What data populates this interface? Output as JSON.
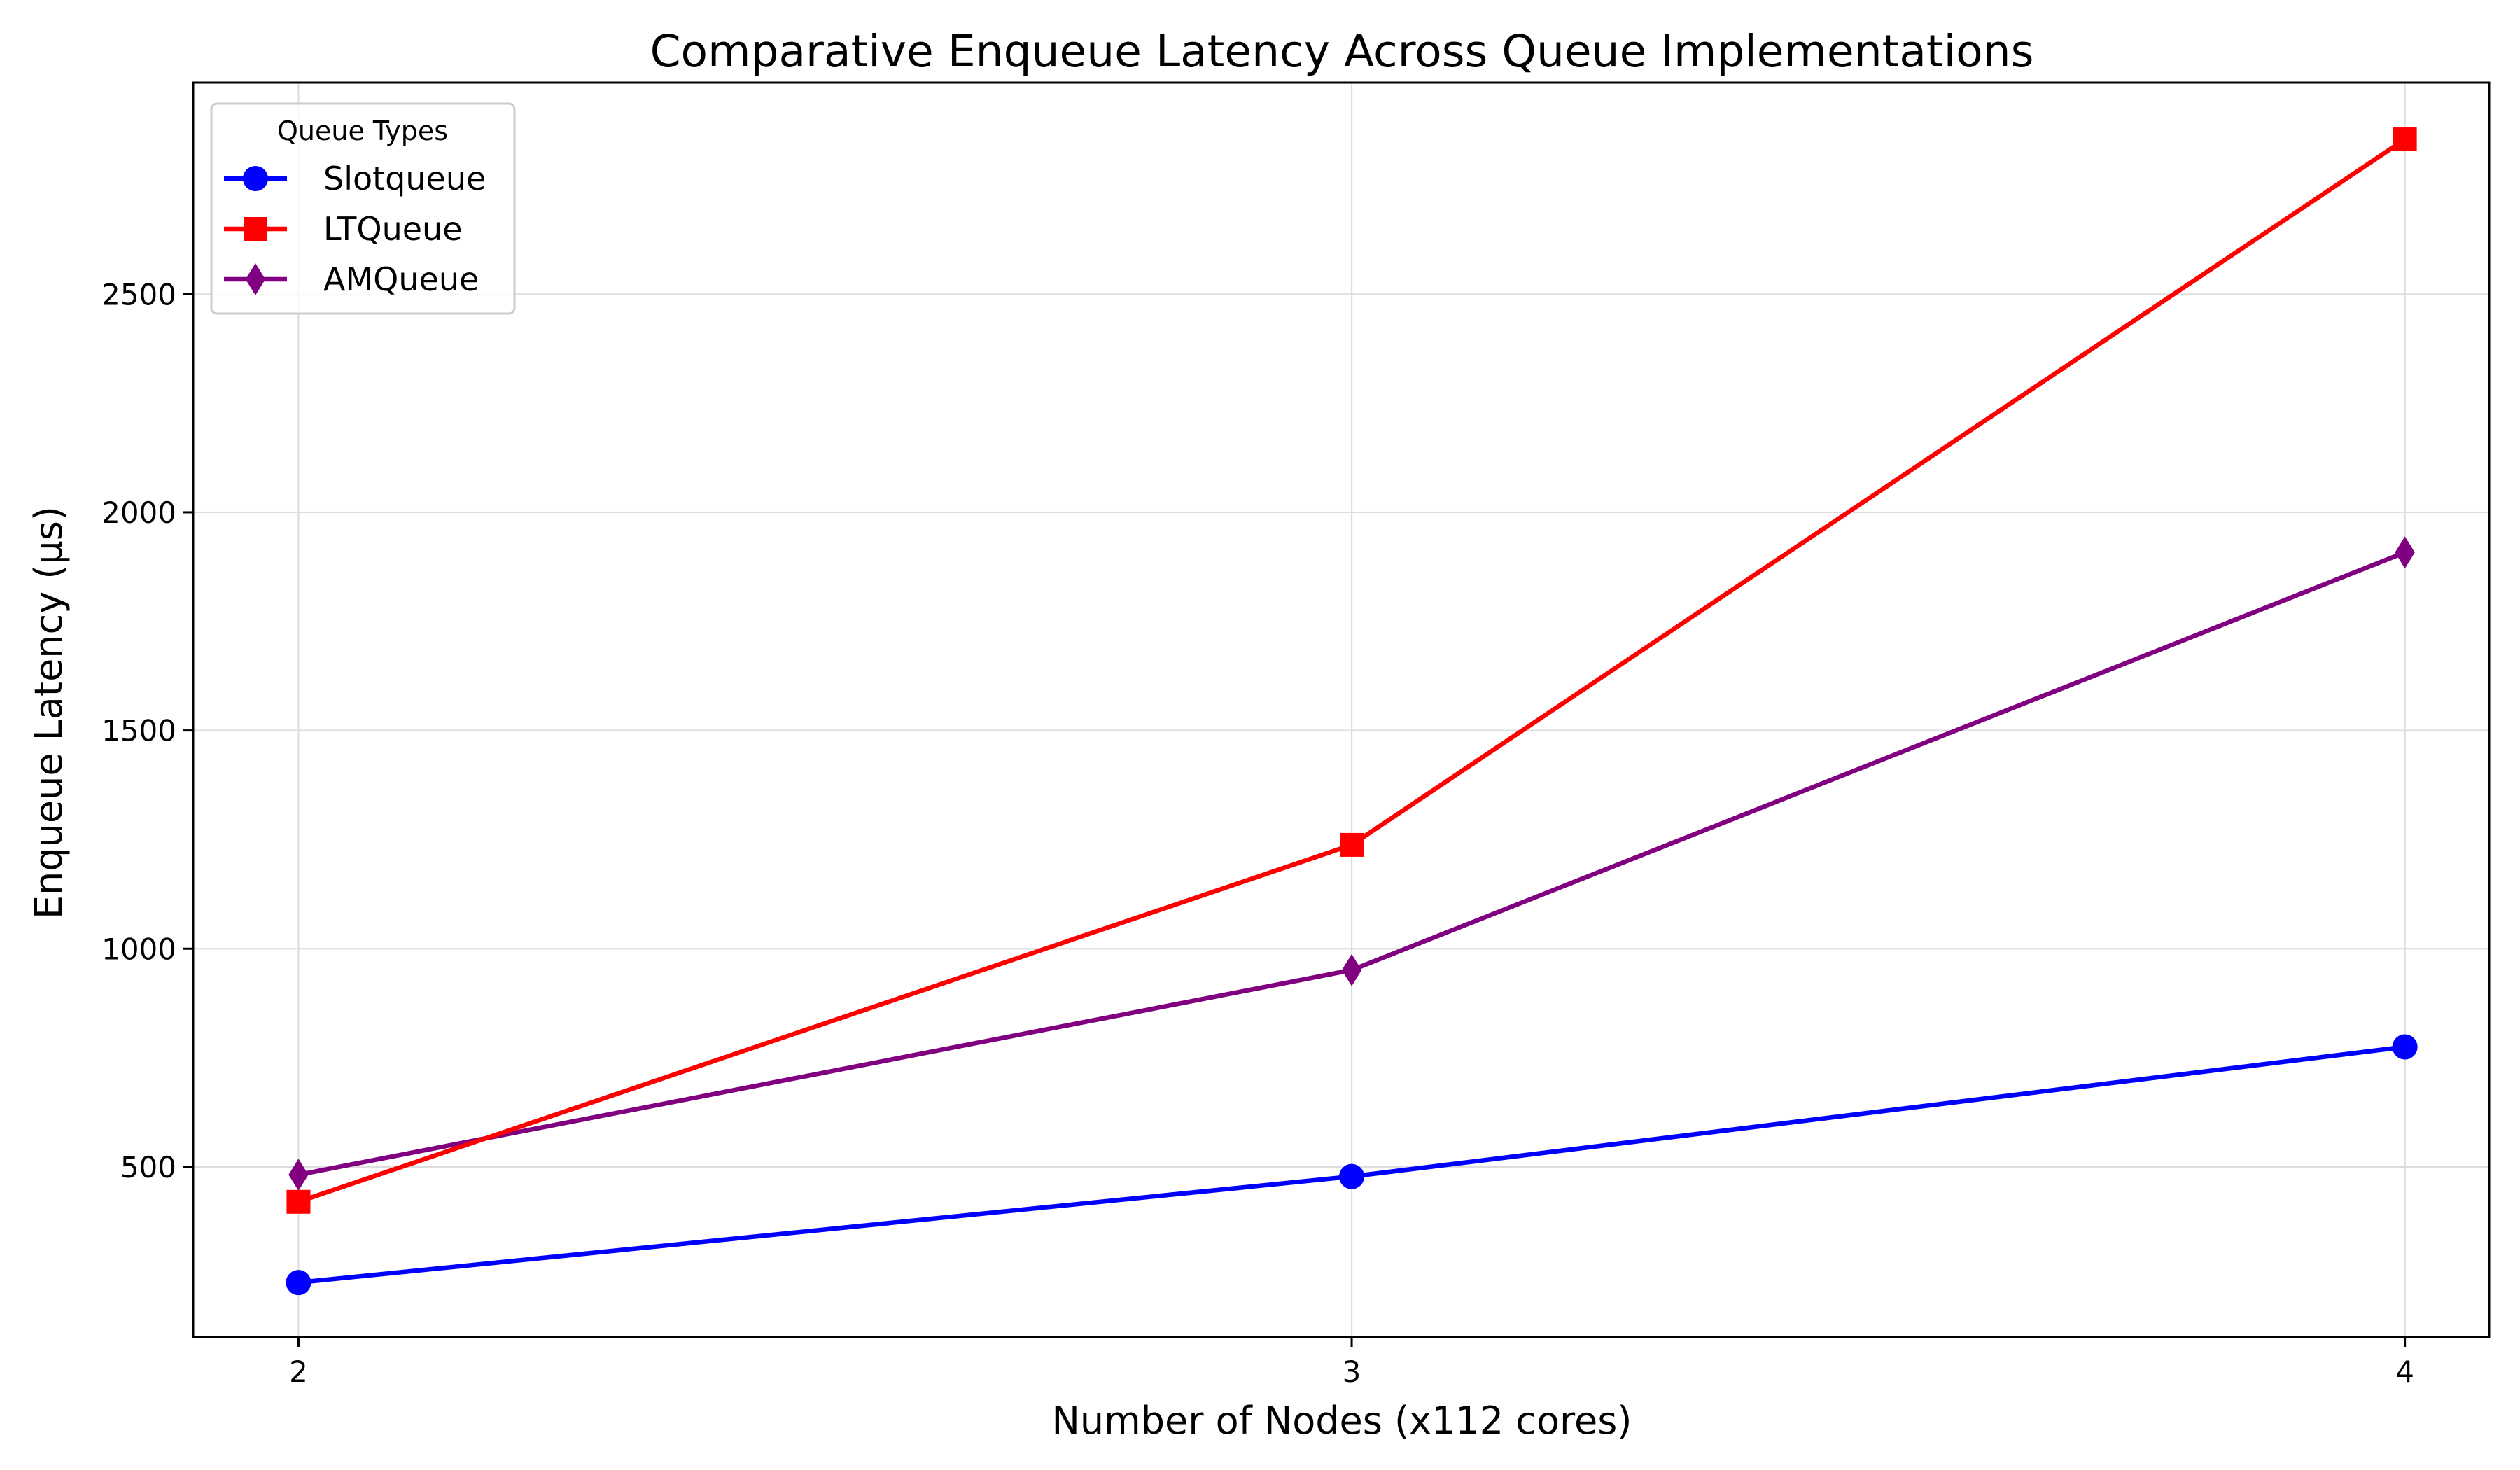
{
  "chart_data": {
    "type": "line",
    "title": "Comparative Enqueue Latency Across Queue Implementations",
    "xlabel": "Number of Nodes (x112 cores)",
    "ylabel": "Enqueue Latency (μs)",
    "x": [
      2,
      3,
      4
    ],
    "x_tick_labels": [
      "2",
      "3",
      "4"
    ],
    "xlim": [
      1.9,
      4.08
    ],
    "ylim": [
      110,
      2985
    ],
    "y_ticks": [
      500,
      1000,
      1500,
      2000,
      2500
    ],
    "y_tick_labels": [
      "500",
      "1000",
      "1500",
      "2000",
      "2500"
    ],
    "grid": true,
    "legend": {
      "title": "Queue Types",
      "position": "top-left"
    },
    "series": [
      {
        "name": "Slotqueue",
        "values": [
          235,
          478,
          775
        ],
        "color": "#0000ff",
        "marker": "circle"
      },
      {
        "name": "LTQueue",
        "values": [
          420,
          1238,
          2855
        ],
        "color": "#ff0000",
        "marker": "square"
      },
      {
        "name": "AMQueue",
        "values": [
          482,
          951,
          1908
        ],
        "color": "#800080",
        "marker": "diamond"
      }
    ]
  }
}
